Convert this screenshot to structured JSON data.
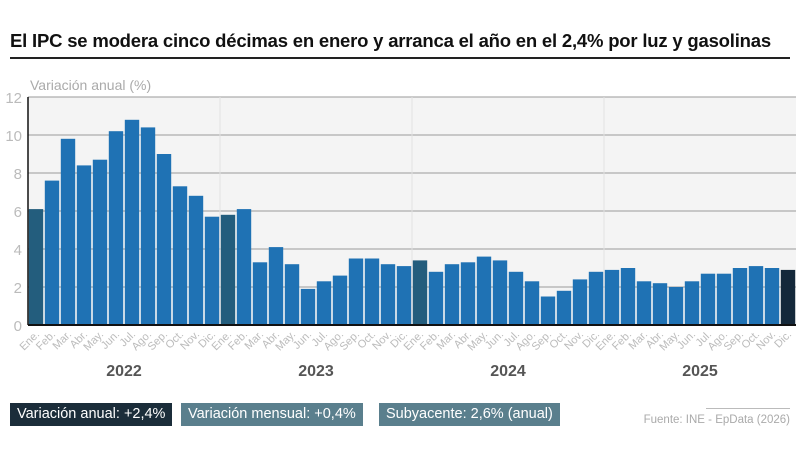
{
  "title": "El IPC se modera cinco décimas en enero y arranca el año en el 2,4% por luz y gasolinas",
  "badges": [
    {
      "label": "Variación anual: +2,4%",
      "color": "#1b2d3a"
    },
    {
      "label": "Variación mensual: +0,4%",
      "color": "#5a7f8d"
    },
    {
      "label": "Subyacente: 2,6% (anual)",
      "color": "#5a7f8d"
    }
  ],
  "source": "Fuente: INE - EpData (2026)",
  "chart_data": {
    "type": "bar",
    "ylabel": "Variación anual (%)",
    "ylim": [
      0,
      12
    ],
    "yticks": [
      0,
      2,
      4,
      6,
      8,
      10,
      12
    ],
    "grid": true,
    "years": [
      "2022",
      "2023",
      "2024",
      "2025"
    ],
    "categories": [
      "Ene.",
      "Feb.",
      "Mar.",
      "Abr.",
      "May.",
      "Jun.",
      "Jul.",
      "Ago.",
      "Sep.",
      "Oct.",
      "Nov.",
      "Dic.",
      "Ene.",
      "Feb.",
      "Mar.",
      "Abr.",
      "May.",
      "Jun.",
      "Jul.",
      "Ago.",
      "Sep.",
      "Oct.",
      "Nov.",
      "Dic.",
      "Ene.",
      "Feb.",
      "Mar.",
      "Abr.",
      "May.",
      "Jun.",
      "Jul.",
      "Ago.",
      "Sep.",
      "Oct.",
      "Nov.",
      "Dic.",
      "Ene.",
      "Feb.",
      "Mar.",
      "Abr.",
      "May.",
      "Jun.",
      "Jul.",
      "Ago.",
      "Sep.",
      "Oct.",
      "Nov.",
      "Dic."
    ],
    "values": [
      6.1,
      7.6,
      9.8,
      8.4,
      8.7,
      10.2,
      10.8,
      10.4,
      9.0,
      7.3,
      6.8,
      5.7,
      5.8,
      6.1,
      3.3,
      4.1,
      3.2,
      1.9,
      2.3,
      2.6,
      3.5,
      3.5,
      3.2,
      3.1,
      3.4,
      2.8,
      3.2,
      3.3,
      3.6,
      3.4,
      2.8,
      2.3,
      1.5,
      1.8,
      2.4,
      2.8,
      2.9,
      3.0,
      2.3,
      2.2,
      2.0,
      2.3,
      2.7,
      2.7,
      3.0,
      3.1,
      3.0,
      2.9
    ],
    "highlight_indices": [
      0,
      12,
      24
    ],
    "latest_index": 47,
    "colors": {
      "bar": "#1f72b4",
      "highlight": "#235d7d",
      "latest": "#14283a",
      "plot_bg": "#f4f4f4",
      "grid": "#9a9a9a",
      "tick_text": "#bbbbbb",
      "year_text": "#555555"
    }
  }
}
